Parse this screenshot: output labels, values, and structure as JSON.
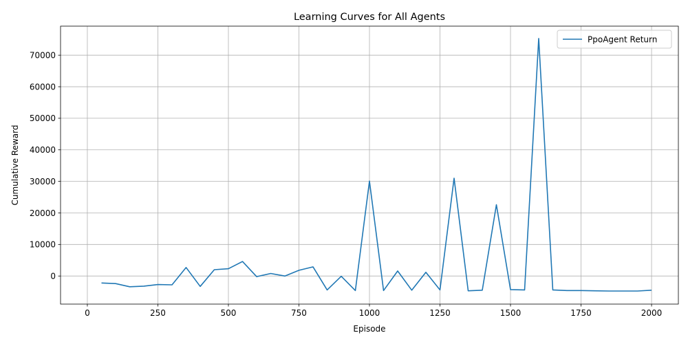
{
  "chart_data": {
    "type": "line",
    "title": "Learning Curves for All Agents",
    "xlabel": "Episode",
    "ylabel": "Cumulative Reward",
    "xlim": [
      -95,
      2095
    ],
    "ylim": [
      -8900,
      79200
    ],
    "x_ticks": [
      0,
      250,
      500,
      750,
      1000,
      1250,
      1500,
      1750,
      2000
    ],
    "y_ticks": [
      0,
      10000,
      20000,
      30000,
      40000,
      50000,
      60000,
      70000
    ],
    "grid": true,
    "legend_position": "top-right",
    "series": [
      {
        "name": "PpoAgent Return",
        "color": "#1f77b4",
        "x": [
          50,
          100,
          150,
          200,
          250,
          300,
          350,
          400,
          450,
          500,
          550,
          600,
          650,
          700,
          750,
          800,
          850,
          900,
          950,
          1000,
          1050,
          1100,
          1150,
          1200,
          1250,
          1300,
          1350,
          1400,
          1450,
          1500,
          1550,
          1600,
          1650,
          1700,
          1750,
          1800,
          1850,
          1900,
          1950,
          2000
        ],
        "y": [
          -2200,
          -2400,
          -3400,
          -3200,
          -2700,
          -2800,
          2700,
          -3300,
          2000,
          2300,
          4600,
          -200,
          800,
          0,
          1800,
          2900,
          -4400,
          -100,
          -4600,
          30100,
          -4600,
          1600,
          -4500,
          1200,
          -4400,
          31000,
          -4700,
          -4500,
          22600,
          -4300,
          -4400,
          75300,
          -4400,
          -4600,
          -4600,
          -4700,
          -4750,
          -4750,
          -4750,
          -4500
        ]
      }
    ]
  }
}
